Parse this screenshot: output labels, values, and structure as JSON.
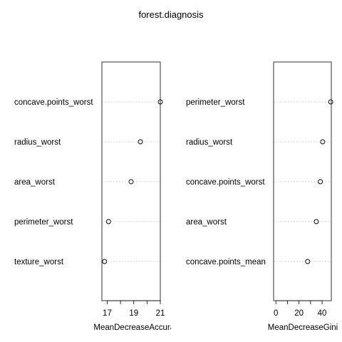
{
  "chart_data": {
    "type": "scatter",
    "title": "forest.diagnosis",
    "panels": [
      {
        "xlabel": "MeanDecreaseAccuracy",
        "categories": [
          "concave.points_worst",
          "radius_worst",
          "area_worst",
          "perimeter_worst",
          "texture_worst"
        ],
        "values": [
          21.0,
          19.5,
          18.8,
          17.1,
          16.8
        ],
        "xlim": [
          16.6,
          21.0
        ],
        "xticks": [
          17,
          19,
          21
        ],
        "grid": true
      },
      {
        "xlabel": "MeanDecreaseGini",
        "categories": [
          "perimeter_worst",
          "radius_worst",
          "concave.points_worst",
          "area_worst",
          "concave.points_mean"
        ],
        "values": [
          47.5,
          40.5,
          38.5,
          35.0,
          27.5
        ],
        "xlim": [
          -2,
          48
        ],
        "xticks": [
          0,
          20,
          40
        ],
        "grid": true
      }
    ]
  }
}
